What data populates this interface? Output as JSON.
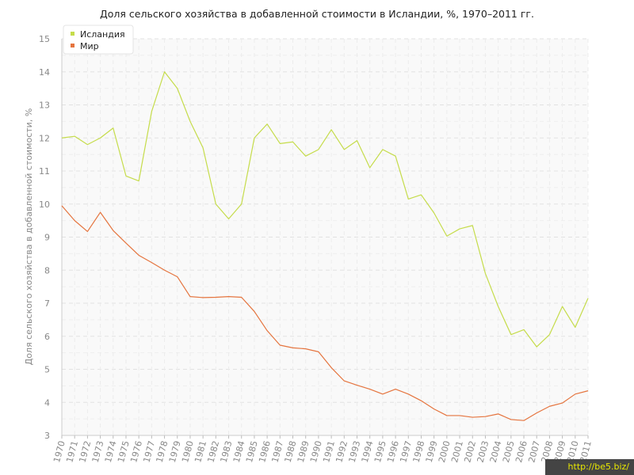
{
  "chart_data": {
    "type": "line",
    "title": "Доля сельского хозяйства в добавленной стоимости в Исландии, %, 1970–2011 гг.",
    "ylabel": "Доля сельского хозяйства в добавленной стоимости, %",
    "xlabel": "",
    "ylim": [
      3,
      15
    ],
    "yticks": [
      3,
      4,
      5,
      6,
      7,
      8,
      9,
      10,
      11,
      12,
      13,
      14,
      15
    ],
    "x": [
      1970,
      1971,
      1972,
      1973,
      1974,
      1975,
      1976,
      1977,
      1978,
      1979,
      1980,
      1981,
      1982,
      1983,
      1984,
      1985,
      1986,
      1987,
      1988,
      1989,
      1990,
      1991,
      1992,
      1993,
      1994,
      1995,
      1996,
      1997,
      1998,
      1999,
      2000,
      2001,
      2002,
      2003,
      2004,
      2005,
      2006,
      2007,
      2008,
      2009,
      2010,
      2011
    ],
    "grid": true,
    "legend_position": "top-left",
    "series": [
      {
        "name": "Исландия",
        "color": "#c5dc4a",
        "values": [
          12.0,
          12.05,
          11.8,
          12.0,
          12.3,
          10.85,
          10.7,
          12.8,
          14.0,
          13.5,
          12.5,
          11.7,
          10.0,
          9.55,
          10.0,
          12.0,
          12.42,
          11.83,
          11.88,
          11.45,
          11.65,
          12.25,
          11.65,
          11.92,
          11.1,
          11.65,
          11.45,
          10.15,
          10.28,
          9.73,
          9.03,
          9.25,
          9.35,
          7.9,
          6.9,
          6.05,
          6.2,
          5.68,
          6.05,
          6.9,
          6.27,
          7.15
        ]
      },
      {
        "name": "Мир",
        "color": "#e5743e",
        "values": [
          9.95,
          9.5,
          9.17,
          9.75,
          9.2,
          8.82,
          8.45,
          8.23,
          8.0,
          7.8,
          7.2,
          7.17,
          7.18,
          7.2,
          7.18,
          6.75,
          6.17,
          5.73,
          5.65,
          5.62,
          5.53,
          5.05,
          4.65,
          4.52,
          4.4,
          4.25,
          4.4,
          4.25,
          4.05,
          3.8,
          3.6,
          3.6,
          3.55,
          3.57,
          3.65,
          3.48,
          3.45,
          3.68,
          3.88,
          3.98,
          4.25,
          4.35
        ]
      }
    ]
  },
  "watermark": "http://be5.biz/"
}
